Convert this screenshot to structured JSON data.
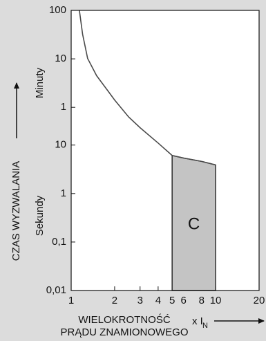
{
  "chart_data": {
    "type": "line",
    "y_title": "CZAS WYZWALANIA",
    "y_minutes_label": "Minuty",
    "y_seconds_label": "Sekundy",
    "x_title_lines": [
      "WIELOKROTNOŚĆ",
      "PRĄDU ZNAMIONOWEGO"
    ],
    "x_unit": "x I",
    "x_unit_sub": "N",
    "x_log": true,
    "y_log": true,
    "xlim": [
      1,
      20
    ],
    "xticks": [
      1,
      2,
      3,
      4,
      5,
      6,
      8,
      10,
      20
    ],
    "ylim": [
      0.01,
      6000
    ],
    "yticks": [
      {
        "value": 6000,
        "label": "100"
      },
      {
        "value": 600,
        "label": "10"
      },
      {
        "value": 60,
        "label": "1"
      },
      10,
      1,
      {
        "value": 0.1,
        "label": "0,1"
      },
      {
        "value": 0.01,
        "label": "0,01"
      }
    ],
    "series": [
      {
        "color": "#4a4a4a",
        "x": [
          1.14,
          1.2,
          1.3,
          1.5,
          1.8,
          2,
          2.5,
          3,
          4,
          5,
          6,
          8,
          10
        ],
        "values": [
          6000,
          1930,
          613,
          270,
          130,
          85,
          38,
          22.8,
          11,
          6.1,
          5.4,
          4.6,
          3.9
        ]
      }
    ],
    "region": {
      "label": "C",
      "from": 5,
      "to": 10,
      "color": "#c4c4c4"
    }
  }
}
